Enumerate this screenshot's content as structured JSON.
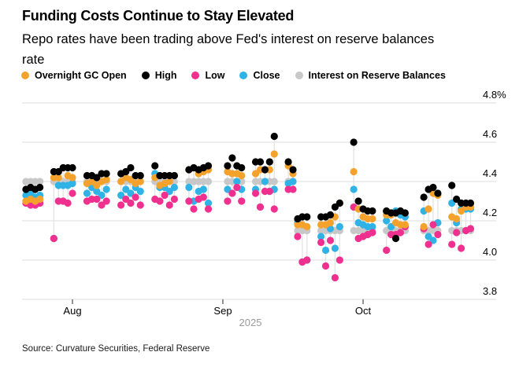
{
  "chart_data": {
    "type": "scatter",
    "title": "Funding Costs Continue to Stay Elevated",
    "subtitle": {
      "line1": "Repo rates have been trading above Fed's interest on reserve balances",
      "line2": "rate"
    },
    "source": "Source: Curvature Securities, Federal Reserve",
    "year_label": "2025",
    "colors": {
      "o": "#F5A22D",
      "h": "#000000",
      "l": "#F0308F",
      "c": "#2FB3E6",
      "r": "#C8C8C8",
      "gridline": "#DCDCDC",
      "whisker": "#E3E3E3",
      "tick": "#4d4d4d"
    },
    "legend": [
      {
        "key": "o",
        "label": "Overnight GC Open"
      },
      {
        "key": "h",
        "label": "High"
      },
      {
        "key": "l",
        "label": "Low"
      },
      {
        "key": "c",
        "label": "Close"
      },
      {
        "key": "r",
        "label": "Interest on Reserve Balances"
      }
    ],
    "y_axis": {
      "min": 3.8,
      "max": 4.8,
      "ticks": [
        {
          "v": 4.8,
          "label": "4.8%"
        },
        {
          "v": 4.6,
          "label": "4.6"
        },
        {
          "v": 4.4,
          "label": "4.4"
        },
        {
          "v": 4.2,
          "label": "4.2"
        },
        {
          "v": 4.0,
          "label": "4.0"
        },
        {
          "v": 3.8,
          "label": "3.8"
        }
      ]
    },
    "x_axis": {
      "ticks": [
        {
          "date": "2025-08-01",
          "label": "Aug"
        },
        {
          "date": "2025-09-01",
          "label": "Sep"
        },
        {
          "date": "2025-10-01",
          "label": "Oct"
        }
      ]
    },
    "days": [
      {
        "d": "2025-07-22",
        "o": 4.3,
        "h": 4.36,
        "l": 4.29,
        "c": 4.33,
        "r": 4.4
      },
      {
        "d": "2025-07-23",
        "o": 4.31,
        "h": 4.37,
        "l": 4.28,
        "c": 4.34,
        "r": 4.4
      },
      {
        "d": "2025-07-24",
        "o": 4.3,
        "h": 4.36,
        "l": 4.28,
        "c": 4.32,
        "r": 4.4
      },
      {
        "d": "2025-07-25",
        "o": 4.31,
        "h": 4.37,
        "l": 4.29,
        "c": 4.33,
        "r": 4.4
      },
      {
        "d": "2025-07-28",
        "o": 4.42,
        "h": 4.45,
        "l": 4.11,
        "c": 4.11,
        "r": 4.4
      },
      {
        "d": "2025-07-29",
        "o": 4.42,
        "h": 4.45,
        "l": 4.3,
        "c": 4.38,
        "r": 4.4
      },
      {
        "d": "2025-07-30",
        "o": 4.47,
        "h": 4.47,
        "l": 4.3,
        "c": 4.38,
        "r": 4.4
      },
      {
        "d": "2025-07-31",
        "o": 4.43,
        "h": 4.47,
        "l": 4.29,
        "c": 4.38,
        "r": 4.4
      },
      {
        "d": "2025-08-01",
        "o": 4.42,
        "h": 4.47,
        "l": 4.34,
        "c": 4.39,
        "r": 4.4
      },
      {
        "d": "2025-08-04",
        "o": 4.39,
        "h": 4.43,
        "l": 4.3,
        "c": 4.34,
        "r": 4.4
      },
      {
        "d": "2025-08-05",
        "o": 4.4,
        "h": 4.43,
        "l": 4.31,
        "c": 4.37,
        "r": 4.4
      },
      {
        "d": "2025-08-06",
        "o": 4.38,
        "h": 4.42,
        "l": 4.31,
        "c": 4.35,
        "r": 4.4
      },
      {
        "d": "2025-08-07",
        "o": 4.4,
        "h": 4.44,
        "l": 4.28,
        "c": 4.33,
        "r": 4.4
      },
      {
        "d": "2025-08-08",
        "o": 4.41,
        "h": 4.44,
        "l": 4.3,
        "c": 4.36,
        "r": 4.4
      },
      {
        "d": "2025-08-11",
        "o": 4.4,
        "h": 4.44,
        "l": 4.28,
        "c": 4.33,
        "r": 4.4
      },
      {
        "d": "2025-08-12",
        "o": 4.42,
        "h": 4.45,
        "l": 4.31,
        "c": 4.36,
        "r": 4.4
      },
      {
        "d": "2025-08-13",
        "o": 4.41,
        "h": 4.47,
        "l": 4.29,
        "c": 4.34,
        "r": 4.4
      },
      {
        "d": "2025-08-14",
        "o": 4.39,
        "h": 4.43,
        "l": 4.32,
        "c": 4.37,
        "r": 4.4
      },
      {
        "d": "2025-08-15",
        "o": 4.4,
        "h": 4.43,
        "l": 4.28,
        "c": 4.35,
        "r": 4.4
      },
      {
        "d": "2025-08-18",
        "o": 4.42,
        "h": 4.48,
        "l": 4.31,
        "c": 4.44,
        "r": 4.4
      },
      {
        "d": "2025-08-19",
        "o": 4.38,
        "h": 4.43,
        "l": 4.3,
        "c": 4.37,
        "r": 4.4
      },
      {
        "d": "2025-08-20",
        "o": 4.39,
        "h": 4.43,
        "l": 4.33,
        "c": 4.37,
        "r": 4.4
      },
      {
        "d": "2025-08-21",
        "o": 4.4,
        "h": 4.43,
        "l": 4.28,
        "c": 4.35,
        "r": 4.4
      },
      {
        "d": "2025-08-22",
        "o": 4.43,
        "h": 4.43,
        "l": 4.31,
        "c": 4.37,
        "r": 4.4
      },
      {
        "d": "2025-08-25",
        "o": 4.46,
        "h": 4.46,
        "l": 4.3,
        "c": 4.37,
        "r": 4.4
      },
      {
        "d": "2025-08-26",
        "o": 4.47,
        "h": 4.47,
        "l": 4.26,
        "c": 4.3,
        "r": 4.4
      },
      {
        "d": "2025-08-27",
        "o": 4.44,
        "h": 4.46,
        "l": 4.31,
        "c": 4.35,
        "r": 4.4
      },
      {
        "d": "2025-08-28",
        "o": 4.45,
        "h": 4.47,
        "l": 4.32,
        "c": 4.36,
        "r": 4.4
      },
      {
        "d": "2025-08-29",
        "o": 4.46,
        "h": 4.48,
        "l": 4.26,
        "c": 4.29,
        "r": 4.4
      },
      {
        "d": "2025-09-02",
        "o": 4.45,
        "h": 4.48,
        "l": 4.3,
        "c": 4.36,
        "r": 4.4
      },
      {
        "d": "2025-09-03",
        "o": 4.44,
        "h": 4.52,
        "l": 4.34,
        "c": 4.44,
        "r": 4.4
      },
      {
        "d": "2025-09-04",
        "o": 4.44,
        "h": 4.48,
        "l": 4.37,
        "c": 4.4,
        "r": 4.4
      },
      {
        "d": "2025-09-05",
        "o": 4.43,
        "h": 4.47,
        "l": 4.3,
        "c": 4.36,
        "r": 4.4
      },
      {
        "d": "2025-09-08",
        "o": 4.44,
        "h": 4.5,
        "l": 4.34,
        "c": 4.36,
        "r": 4.4
      },
      {
        "d": "2025-09-09",
        "o": 4.46,
        "h": 4.5,
        "l": 4.27,
        "c": 4.27,
        "r": 4.4
      },
      {
        "d": "2025-09-10",
        "o": 4.46,
        "h": 4.46,
        "l": 4.35,
        "c": 4.4,
        "r": 4.4
      },
      {
        "d": "2025-09-11",
        "o": 4.46,
        "h": 4.5,
        "l": 4.35,
        "c": 4.35,
        "r": 4.4
      },
      {
        "d": "2025-09-12",
        "o": 4.54,
        "h": 4.63,
        "l": 4.26,
        "c": 4.36,
        "r": 4.4
      },
      {
        "d": "2025-09-15",
        "o": 4.48,
        "h": 4.5,
        "l": 4.36,
        "c": 4.39,
        "r": 4.4
      },
      {
        "d": "2025-09-16",
        "o": 4.44,
        "h": 4.46,
        "l": 4.36,
        "c": 4.4,
        "r": 4.4
      },
      {
        "d": "2025-09-17",
        "o": 4.18,
        "h": 4.21,
        "l": 4.12,
        "c": 4.19,
        "r": 4.15
      },
      {
        "d": "2025-09-18",
        "o": 4.18,
        "h": 4.22,
        "l": 3.99,
        "c": 3.99,
        "r": 4.15
      },
      {
        "d": "2025-09-19",
        "o": 4.17,
        "h": 4.22,
        "l": 4.0,
        "c": 4.0,
        "r": 4.15
      },
      {
        "d": "2025-09-22",
        "o": 4.18,
        "h": 4.22,
        "l": 4.09,
        "c": 4.12,
        "r": 4.15
      },
      {
        "d": "2025-09-23",
        "o": 4.18,
        "h": 4.22,
        "l": 3.97,
        "c": 4.05,
        "r": 4.15
      },
      {
        "d": "2025-09-24",
        "o": 4.19,
        "h": 4.23,
        "l": 4.1,
        "c": 4.16,
        "r": 4.15
      },
      {
        "d": "2025-09-25",
        "o": 4.22,
        "h": 4.27,
        "l": 3.91,
        "c": 4.06,
        "r": 4.15
      },
      {
        "d": "2025-09-26",
        "o": 4.29,
        "h": 4.29,
        "l": 4.0,
        "c": 4.17,
        "r": 4.15
      },
      {
        "d": "2025-09-29",
        "o": 4.45,
        "h": 4.6,
        "l": 4.27,
        "c": 4.36,
        "r": 4.15
      },
      {
        "d": "2025-09-30",
        "o": 4.26,
        "h": 4.3,
        "l": 4.11,
        "c": 4.19,
        "r": 4.15
      },
      {
        "d": "2025-10-01",
        "o": 4.22,
        "h": 4.26,
        "l": 4.12,
        "c": 4.18,
        "r": 4.15
      },
      {
        "d": "2025-10-02",
        "o": 4.21,
        "h": 4.25,
        "l": 4.13,
        "c": 4.17,
        "r": 4.15
      },
      {
        "d": "2025-10-03",
        "o": 4.21,
        "h": 4.25,
        "l": 4.14,
        "c": 4.17,
        "r": 4.15
      },
      {
        "d": "2025-10-06",
        "o": 4.23,
        "h": 4.25,
        "l": 4.05,
        "c": 4.2,
        "r": 4.15
      },
      {
        "d": "2025-10-07",
        "o": 4.23,
        "h": 4.24,
        "l": 4.13,
        "c": 4.17,
        "r": 4.15
      },
      {
        "d": "2025-10-08",
        "o": 4.19,
        "h": 4.24,
        "l": 4.13,
        "c": 4.25,
        "r": 4.15
      },
      {
        "d": "2025-10-09",
        "o": 4.18,
        "h": 4.25,
        "l": 4.14,
        "c": 4.23,
        "r": 4.15
      },
      {
        "d": "2025-10-10",
        "o": 4.18,
        "h": 4.24,
        "l": 4.17,
        "c": 4.22,
        "r": 4.15
      },
      {
        "d": "2025-10-14",
        "o": 4.17,
        "h": 4.32,
        "l": 4.16,
        "c": 4.25,
        "r": 4.15
      },
      {
        "d": "2025-10-15",
        "o": 4.26,
        "h": 4.36,
        "l": 4.08,
        "c": 4.12,
        "r": 4.15
      },
      {
        "d": "2025-10-16",
        "o": 4.34,
        "h": 4.37,
        "l": 4.18,
        "c": 4.1,
        "r": 4.15
      },
      {
        "d": "2025-10-17",
        "o": 4.33,
        "h": 4.34,
        "l": 4.13,
        "c": 4.19,
        "r": 4.15
      },
      {
        "d": "2025-10-20",
        "o": 4.22,
        "h": 4.38,
        "l": 4.08,
        "c": 4.29,
        "r": 4.15
      },
      {
        "d": "2025-10-21",
        "o": 4.21,
        "h": 4.31,
        "l": 4.14,
        "c": 4.19,
        "r": 4.15
      },
      {
        "d": "2025-10-22",
        "o": 4.25,
        "h": 4.29,
        "l": 4.06,
        "c": 4.26,
        "r": 4.15
      },
      {
        "d": "2025-10-23",
        "o": 4.27,
        "h": 4.29,
        "l": 4.15,
        "c": 4.26,
        "r": 4.15
      },
      {
        "d": "2025-10-24",
        "o": 4.27,
        "h": 4.29,
        "l": 4.16,
        "c": 4.26,
        "r": 4.15
      }
    ],
    "extra_points": [
      {
        "d": "2025-10-08",
        "series": "h",
        "v": 4.11
      }
    ]
  }
}
